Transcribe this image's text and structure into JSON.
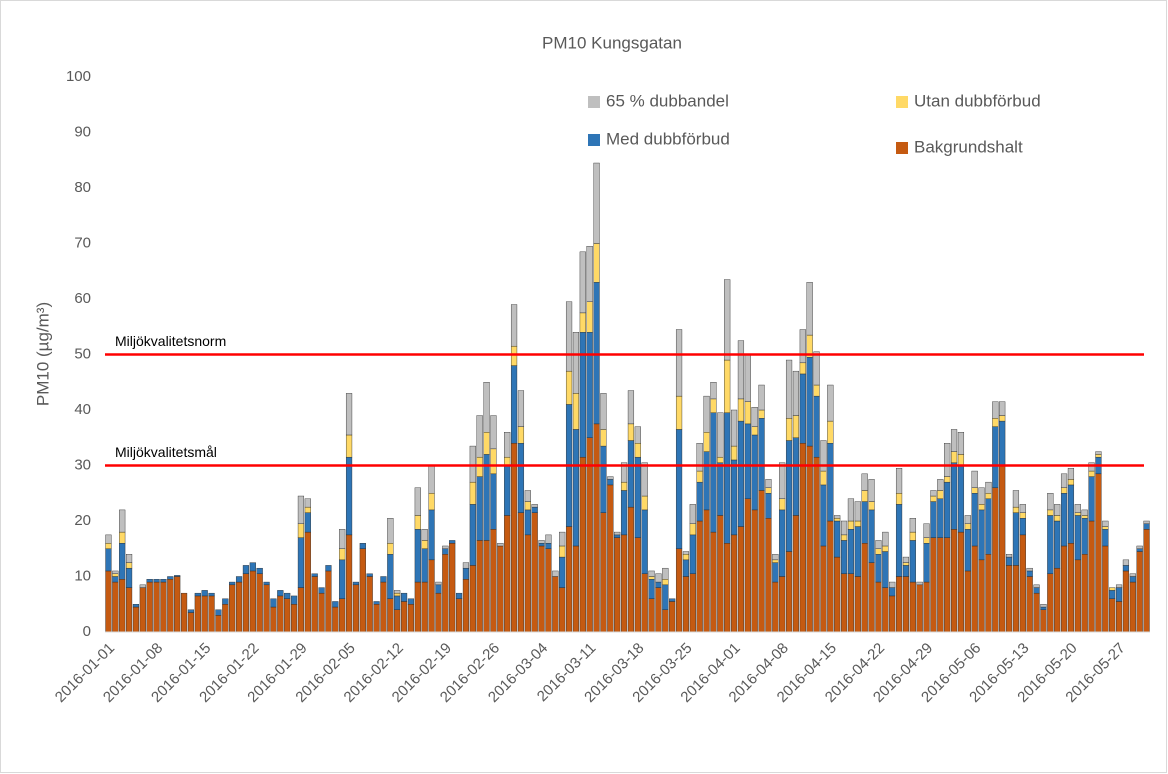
{
  "chart_data": {
    "type": "stacked_bar",
    "title": "PM10 Kungsgatan",
    "y_label": "PM10 (µg/m³)",
    "categories": [
      "2016-01-01",
      null,
      null,
      null,
      null,
      null,
      null,
      "2016-01-08",
      null,
      null,
      null,
      null,
      null,
      null,
      "2016-01-15",
      null,
      null,
      null,
      null,
      null,
      null,
      "2016-01-22",
      null,
      null,
      null,
      null,
      null,
      null,
      "2016-01-29",
      null,
      null,
      null,
      null,
      null,
      null,
      "2016-02-05",
      null,
      null,
      null,
      null,
      null,
      null,
      "2016-02-12",
      null,
      null,
      null,
      null,
      null,
      null,
      "2016-02-19",
      null,
      null,
      null,
      null,
      null,
      null,
      "2016-02-26",
      null,
      null,
      null,
      null,
      null,
      null,
      "2016-03-04",
      null,
      null,
      null,
      null,
      null,
      null,
      "2016-03-11",
      null,
      null,
      null,
      null,
      null,
      null,
      "2016-03-18",
      null,
      null,
      null,
      null,
      null,
      null,
      "2016-03-25",
      null,
      null,
      null,
      null,
      null,
      null,
      "2016-04-01",
      null,
      null,
      null,
      null,
      null,
      null,
      "2016-04-08",
      null,
      null,
      null,
      null,
      null,
      null,
      "2016-04-15",
      null,
      null,
      null,
      null,
      null,
      null,
      "2016-04-22",
      null,
      null,
      null,
      null,
      null,
      null,
      "2016-04-29",
      null,
      null,
      null,
      null,
      null,
      null,
      "2016-05-06",
      null,
      null,
      null,
      null,
      null,
      null,
      "2016-05-13",
      null,
      null,
      null,
      null,
      null,
      null,
      "2016-05-20",
      null,
      null,
      null,
      null,
      null,
      null,
      "2016-05-27",
      null,
      null,
      null,
      null
    ],
    "series": [
      {
        "name": "Bakgrundshalt",
        "color": "#c55a11",
        "values": [
          11,
          9,
          9.5,
          8,
          4.5,
          8,
          9,
          9,
          9,
          9.5,
          10,
          7,
          3.5,
          6.5,
          6.5,
          6.5,
          3,
          5,
          8.5,
          9,
          10.5,
          11,
          10.5,
          8.5,
          4.5,
          6.5,
          6,
          5,
          8,
          18,
          10,
          7,
          11,
          4.5,
          6,
          17.5,
          8.5,
          15,
          10,
          5,
          9,
          6,
          4,
          5.5,
          5,
          9,
          9,
          13,
          7,
          14,
          16,
          6,
          9.5,
          12,
          16.5,
          16.5,
          18.5,
          15.5,
          21,
          34,
          21.5,
          17.5,
          21.5,
          15.5,
          15,
          10,
          8,
          19,
          15.5,
          31.5,
          35,
          37.5,
          21.5,
          26.5,
          17,
          17.5,
          22.5,
          17,
          10.5,
          6,
          8,
          4,
          5.5,
          15,
          10,
          10.5,
          20,
          22,
          18,
          21,
          16,
          17.5,
          19,
          24,
          22,
          25.5,
          20.5,
          9,
          10,
          14.5,
          21,
          34,
          33.5,
          31.5,
          15.5,
          20,
          13.5,
          10.5,
          10.5,
          10,
          16,
          12.5,
          9,
          8,
          6.5,
          10,
          10,
          9,
          8.5,
          9,
          17,
          17,
          17,
          18.5,
          18,
          11,
          15.5,
          13,
          14,
          26,
          30,
          12,
          12,
          17.5,
          10,
          7,
          4,
          10.5,
          11.5,
          15.5,
          16,
          13,
          14,
          20,
          28.5,
          15.5,
          6,
          5.5,
          11,
          9,
          14.5,
          18.5
        ]
      },
      {
        "name": "Med dubbförbud",
        "color": "#2e75b6",
        "values": [
          4,
          1,
          6.5,
          3.5,
          0.5,
          0,
          0.5,
          0.5,
          0.5,
          0.5,
          0.2,
          0,
          0.5,
          0.5,
          1,
          0.5,
          1,
          1,
          0.5,
          1,
          1.5,
          1.5,
          1,
          0.5,
          1.5,
          1,
          1,
          1.5,
          9,
          3.5,
          0.5,
          1,
          1,
          1,
          7,
          14,
          0.5,
          1,
          0.5,
          0.5,
          1,
          8,
          2.5,
          1.5,
          1,
          9.5,
          6,
          9,
          1.5,
          1,
          0.5,
          1,
          2,
          11,
          11.5,
          15.5,
          10,
          0,
          9,
          14,
          12.5,
          4.5,
          1,
          0.5,
          1,
          0,
          5.5,
          22,
          21,
          22.5,
          19,
          25.5,
          12,
          1,
          0.5,
          8,
          12,
          14.5,
          11.5,
          3.5,
          1,
          4.5,
          0.5,
          21.5,
          3,
          7,
          7,
          10.5,
          21.5,
          9.5,
          23.5,
          13.5,
          19,
          13.5,
          13.5,
          13,
          4.5,
          3.5,
          12,
          20,
          14,
          12.5,
          16,
          11,
          11,
          14,
          6.5,
          6,
          8,
          9,
          7.5,
          9.5,
          5,
          6.5,
          1.5,
          13,
          2,
          7.5,
          0,
          7,
          6.5,
          7,
          10,
          12,
          12,
          7.5,
          9.5,
          9,
          10,
          11,
          8,
          1.5,
          9.5,
          3,
          1,
          1,
          0.5,
          10.5,
          8.5,
          9.5,
          10.5,
          8,
          6.5,
          8,
          3,
          3,
          1.5,
          2.5,
          1,
          1,
          0.5,
          1
        ]
      },
      {
        "name": "Utan dubbförbud",
        "color": "#ffd966",
        "values": [
          1,
          0.5,
          2,
          1,
          0,
          0,
          0,
          0,
          0,
          0,
          0,
          0,
          0,
          0,
          0,
          0,
          0,
          0,
          0,
          0,
          0,
          0,
          0,
          0,
          0,
          0,
          0,
          0,
          2.5,
          1,
          0,
          0,
          0,
          0,
          2,
          4,
          0,
          0,
          0,
          0,
          0,
          2,
          0.5,
          0,
          0,
          2.5,
          1.5,
          3,
          0,
          0,
          0,
          0,
          0,
          4,
          3.5,
          4,
          4.5,
          0,
          1.5,
          3.5,
          3,
          1.5,
          0,
          0,
          0,
          0,
          2,
          6,
          6.5,
          3.5,
          5.5,
          7,
          3,
          0,
          0,
          1.5,
          3,
          2.5,
          2.5,
          0.5,
          0,
          1,
          0,
          6,
          1,
          2,
          2,
          3.5,
          2.5,
          1,
          9.5,
          2.5,
          4,
          4,
          1.5,
          1.5,
          1,
          0.5,
          2,
          4,
          4,
          2,
          4,
          2,
          2.5,
          4,
          0.5,
          1,
          1.5,
          1,
          2,
          1.5,
          1,
          1,
          0,
          2,
          0.5,
          1.5,
          0,
          1,
          1,
          1.5,
          1,
          2,
          2,
          1,
          1,
          1,
          1,
          1.5,
          1,
          0,
          1,
          1,
          0,
          0,
          0,
          1,
          1,
          1,
          1,
          0.5,
          0.5,
          1,
          0.5,
          0.5,
          0.5,
          0,
          0,
          0,
          0,
          0
        ]
      },
      {
        "name": "65 % dubbandel",
        "color": "#bfbfbf",
        "values": [
          1.5,
          0.5,
          4,
          1.5,
          0,
          0.5,
          0,
          0,
          0,
          0,
          0,
          0,
          0,
          0,
          0,
          0,
          0,
          0,
          0,
          0,
          0,
          0,
          0,
          0,
          0,
          0,
          0,
          0,
          5,
          1.5,
          0,
          0,
          0,
          0,
          3.5,
          7.5,
          0,
          0,
          0,
          0,
          0,
          4.5,
          0.5,
          0,
          0,
          5,
          2,
          5,
          0.5,
          0.5,
          0,
          0,
          1,
          6.5,
          7.5,
          9,
          6,
          0.5,
          4.5,
          7.5,
          6.5,
          2,
          0.5,
          0.5,
          1.5,
          1,
          2.5,
          12.5,
          11,
          11,
          10,
          14.5,
          6.5,
          0.5,
          0.5,
          3.5,
          6,
          3,
          6,
          1,
          1.5,
          2,
          0,
          12,
          0.5,
          3.5,
          5,
          6.5,
          3,
          8,
          14.5,
          6.5,
          10.5,
          8.5,
          3.5,
          4.5,
          1.5,
          1,
          6.5,
          10.5,
          8,
          6,
          9.5,
          6,
          5.5,
          6.5,
          0.5,
          2.5,
          4,
          3.5,
          3,
          4,
          1.5,
          2.5,
          1,
          4.5,
          1,
          2.5,
          0.5,
          2.5,
          1,
          2,
          6,
          4,
          4,
          1.5,
          3,
          3,
          2,
          3,
          2.5,
          0.5,
          3,
          1.5,
          0.5,
          0.5,
          0.5,
          3,
          2,
          2.5,
          2,
          1.5,
          1,
          1.5,
          0.5,
          1,
          0,
          0.5,
          1,
          0.5,
          0.5,
          0.5
        ]
      }
    ],
    "reference_lines": [
      {
        "label": "Miljökvalitetsnorm",
        "value": 50,
        "color": "#ff0000"
      },
      {
        "label": "Miljökvalitetsmål",
        "value": 30,
        "color": "#ff0000"
      }
    ],
    "ylim": [
      0,
      100
    ],
    "yticks": [
      0,
      10,
      20,
      30,
      40,
      50,
      60,
      70,
      80,
      90,
      100
    ],
    "grid": false
  }
}
